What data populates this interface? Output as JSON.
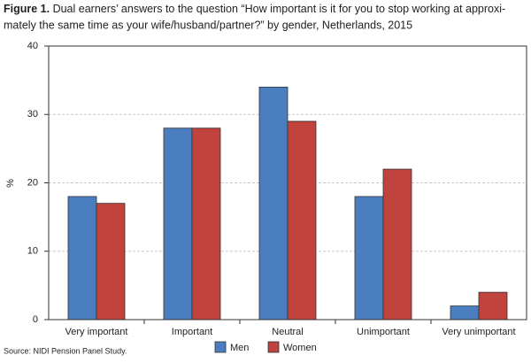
{
  "chart_data": {
    "type": "bar",
    "title_label": "Figure 1.",
    "title_lines": [
      "Dual earners’ answers to the question “How important is it for you to stop working at approxi-",
      "mately the same time as your wife/husband/partner?” by gender, Netherlands, 2015"
    ],
    "y_label": "%",
    "source": "Source: NIDI Pension Panel Study.",
    "categories": [
      "Very important",
      "Important",
      "Neutral",
      "Unimportant",
      "Very unimportant"
    ],
    "series": [
      {
        "name": "Men",
        "color": "#4a7ebf",
        "values": [
          18,
          28,
          34,
          18,
          2
        ]
      },
      {
        "name": "Women",
        "color": "#c0433d",
        "values": [
          17,
          28,
          29,
          22,
          4
        ]
      }
    ],
    "ylim": [
      0,
      40
    ],
    "yticks": [
      0,
      10,
      20,
      30,
      40
    ],
    "grid": true,
    "legend": "bottom"
  }
}
